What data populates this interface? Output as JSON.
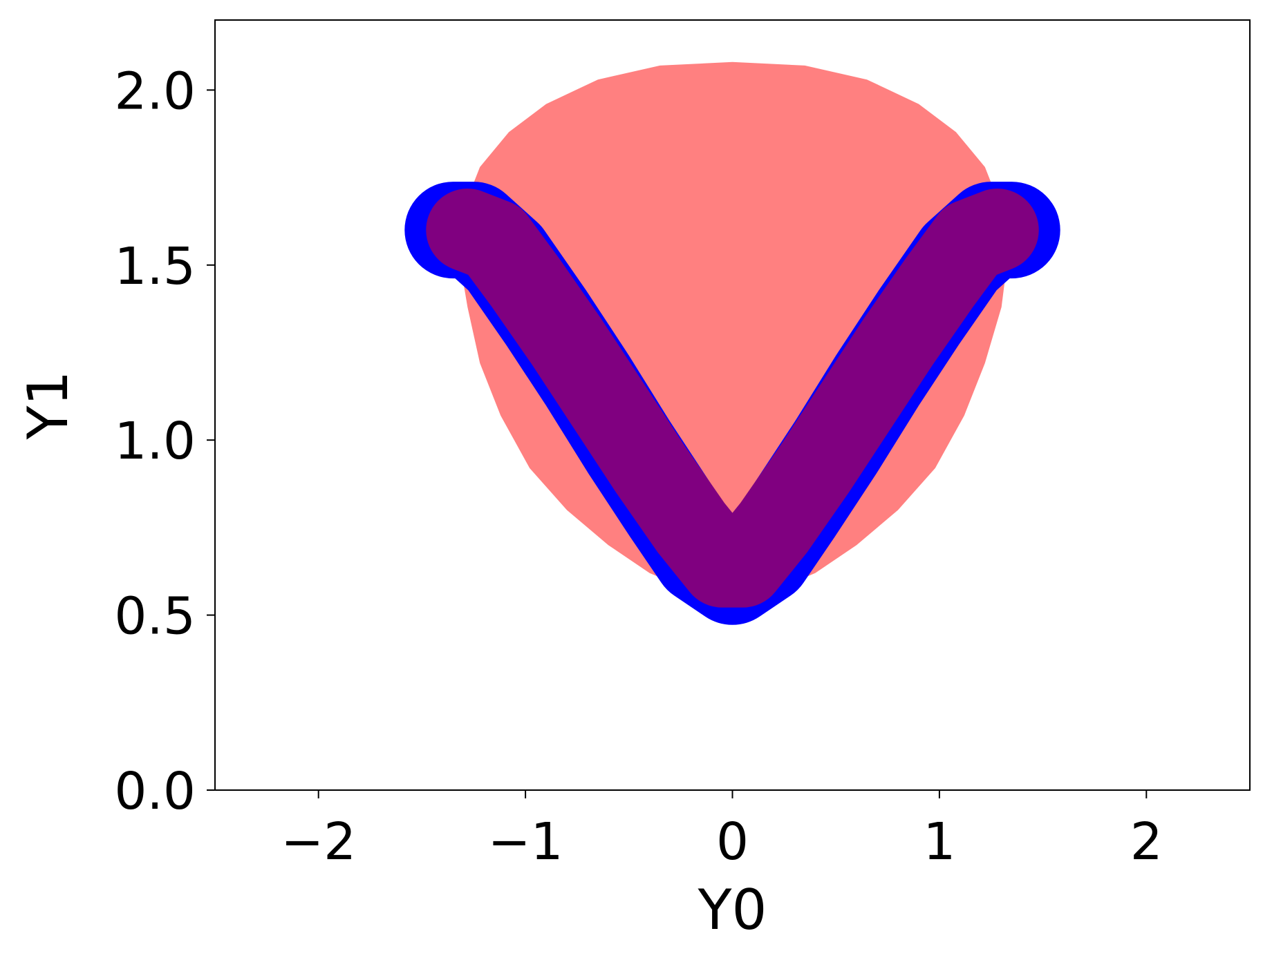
{
  "chart_data": {
    "type": "scatter",
    "xlabel": "Y0",
    "ylabel": "Y1",
    "xlim": [
      -2.5,
      2.5
    ],
    "ylim": [
      0.0,
      2.2
    ],
    "x_ticks": [
      -2,
      -1,
      0,
      1,
      2
    ],
    "x_tick_labels": [
      "−2",
      "−1",
      "0",
      "1",
      "2"
    ],
    "y_ticks": [
      0.0,
      0.5,
      1.0,
      1.5,
      2.0
    ],
    "y_tick_labels": [
      "0.0",
      "0.5",
      "1.0",
      "1.5",
      "2.0"
    ],
    "grid": false,
    "legend": "none",
    "series": [
      {
        "color": "#ff8080",
        "description": "filled region",
        "boundary": [
          [
            -1.32,
            1.52
          ],
          [
            -1.3,
            1.66
          ],
          [
            -1.22,
            1.78
          ],
          [
            -1.08,
            1.88
          ],
          [
            -0.9,
            1.96
          ],
          [
            -0.65,
            2.03
          ],
          [
            -0.35,
            2.07
          ],
          [
            0.0,
            2.08
          ],
          [
            0.35,
            2.07
          ],
          [
            0.65,
            2.03
          ],
          [
            0.9,
            1.96
          ],
          [
            1.08,
            1.88
          ],
          [
            1.22,
            1.78
          ],
          [
            1.3,
            1.66
          ],
          [
            1.33,
            1.52
          ],
          [
            1.3,
            1.38
          ],
          [
            1.22,
            1.22
          ],
          [
            1.12,
            1.07
          ],
          [
            0.98,
            0.92
          ],
          [
            0.8,
            0.8
          ],
          [
            0.6,
            0.7
          ],
          [
            0.4,
            0.62
          ],
          [
            0.2,
            0.57
          ],
          [
            0.0,
            0.55
          ],
          [
            -0.2,
            0.57
          ],
          [
            -0.4,
            0.62
          ],
          [
            -0.6,
            0.7
          ],
          [
            -0.8,
            0.8
          ],
          [
            -0.98,
            0.92
          ],
          [
            -1.12,
            1.07
          ],
          [
            -1.22,
            1.22
          ],
          [
            -1.28,
            1.38
          ]
        ]
      },
      {
        "color": "#0000ff",
        "description": "V-shaped band (lower points)",
        "x": [
          -1.35,
          -1.25,
          -1.1,
          -0.9,
          -0.7,
          -0.5,
          -0.3,
          -0.15,
          0.0,
          0.15,
          0.3,
          0.5,
          0.7,
          0.9,
          1.1,
          1.25,
          1.35
        ],
        "y": [
          1.6,
          1.6,
          1.52,
          1.35,
          1.17,
          0.98,
          0.8,
          0.67,
          0.61,
          0.67,
          0.8,
          0.98,
          1.17,
          1.35,
          1.52,
          1.6,
          1.6
        ]
      },
      {
        "color": "#800080",
        "description": "V-shaped band (upper points)",
        "x": [
          -1.28,
          -1.15,
          -1.0,
          -0.8,
          -0.6,
          -0.4,
          -0.2,
          -0.05,
          0.05,
          0.2,
          0.4,
          0.6,
          0.8,
          1.0,
          1.15,
          1.28
        ],
        "y": [
          1.6,
          1.57,
          1.45,
          1.28,
          1.1,
          0.92,
          0.75,
          0.64,
          0.64,
          0.75,
          0.92,
          1.1,
          1.28,
          1.45,
          1.57,
          1.6
        ]
      }
    ]
  }
}
